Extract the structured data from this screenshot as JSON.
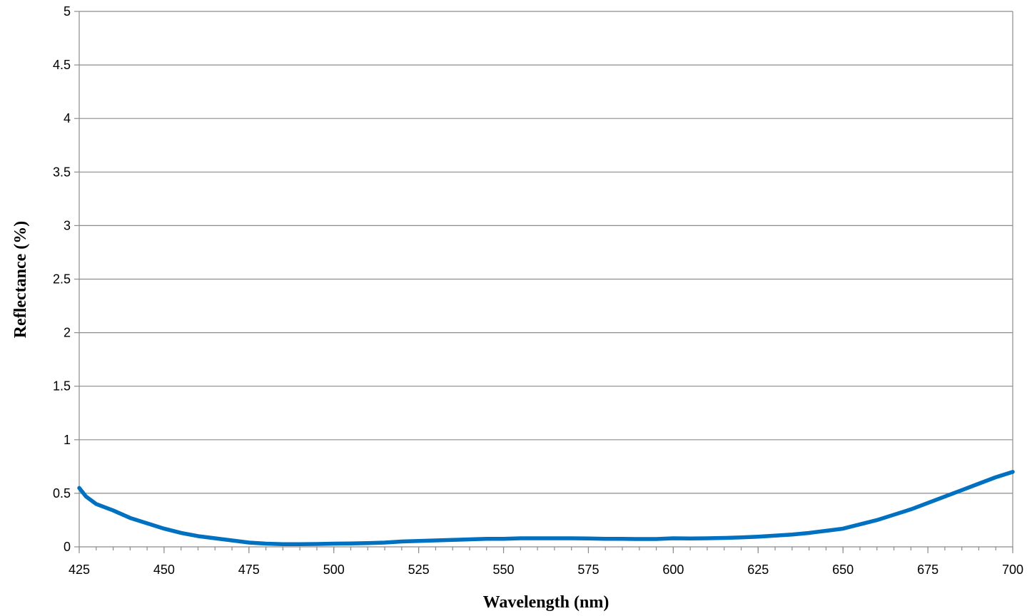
{
  "chart_data": {
    "type": "line",
    "title": "",
    "xlabel": "Wavelength (nm)",
    "ylabel": "Reflectance (%)",
    "xlim": [
      425,
      700
    ],
    "ylim": [
      0,
      5
    ],
    "x_ticks": [
      425,
      450,
      475,
      500,
      525,
      550,
      575,
      600,
      625,
      650,
      675,
      700
    ],
    "x_tick_labels": [
      "425",
      "450",
      "475",
      "500",
      "525",
      "550",
      "575",
      "600",
      "625",
      "650",
      "675",
      "700"
    ],
    "x_minor_step": 5,
    "y_ticks": [
      0,
      0.5,
      1,
      1.5,
      2,
      2.5,
      3,
      3.5,
      4,
      4.5,
      5
    ],
    "y_tick_labels": [
      "0",
      "0.5",
      "1",
      "1.5",
      "2",
      "2.5",
      "3",
      "3.5",
      "4",
      "4.5",
      "5"
    ],
    "grid": "horizontal",
    "legend": "none",
    "series": [
      {
        "color": "#0070c0",
        "x": [
          425,
          427,
          430,
          435,
          440,
          445,
          450,
          455,
          460,
          465,
          470,
          475,
          480,
          485,
          490,
          495,
          500,
          505,
          510,
          515,
          520,
          525,
          530,
          535,
          540,
          545,
          550,
          555,
          560,
          565,
          570,
          575,
          580,
          585,
          590,
          595,
          600,
          605,
          610,
          615,
          620,
          625,
          630,
          635,
          640,
          645,
          650,
          655,
          660,
          665,
          670,
          675,
          680,
          685,
          690,
          695,
          700
        ],
        "y": [
          0.55,
          0.47,
          0.4,
          0.34,
          0.27,
          0.22,
          0.17,
          0.13,
          0.1,
          0.08,
          0.06,
          0.04,
          0.03,
          0.025,
          0.025,
          0.027,
          0.03,
          0.032,
          0.035,
          0.04,
          0.05,
          0.055,
          0.06,
          0.065,
          0.07,
          0.075,
          0.075,
          0.08,
          0.08,
          0.08,
          0.08,
          0.078,
          0.075,
          0.075,
          0.073,
          0.073,
          0.08,
          0.078,
          0.08,
          0.083,
          0.088,
          0.095,
          0.105,
          0.115,
          0.13,
          0.15,
          0.17,
          0.21,
          0.25,
          0.3,
          0.35,
          0.41,
          0.47,
          0.53,
          0.59,
          0.65,
          0.7
        ]
      }
    ]
  }
}
